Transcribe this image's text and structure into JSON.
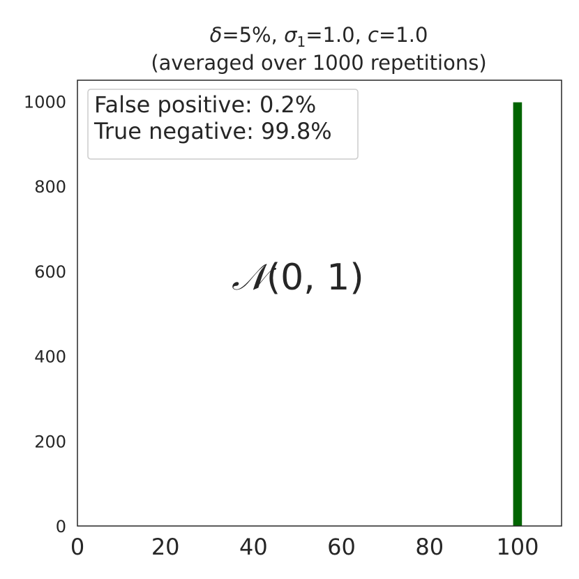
{
  "chart_data": {
    "type": "bar",
    "title_parts": {
      "delta_symbol": "δ",
      "delta_value": "=5%, ",
      "sigma_symbol": "σ",
      "sigma_subscript": "1",
      "sigma_value": "=1.0, ",
      "c_symbol": "c",
      "c_value": "=1.0"
    },
    "subtitle": "(averaged over 1000 repetitions)",
    "xlabel": "",
    "ylabel": "",
    "xlim": [
      0,
      110
    ],
    "ylim": [
      0,
      1050
    ],
    "x_ticks": [
      0,
      20,
      40,
      60,
      80,
      100
    ],
    "y_ticks": [
      0,
      200,
      400,
      600,
      800,
      1000
    ],
    "bars": [
      {
        "x_start": 99,
        "x_end": 101,
        "value": 998,
        "color": "#006400"
      }
    ],
    "legend": {
      "placement": "top-left",
      "lines": [
        "False positive: 0.2%",
        "True negative: 99.8%"
      ]
    },
    "annotation": {
      "symbol": "𝒩",
      "text": "(0, 1)"
    },
    "grid": false
  }
}
